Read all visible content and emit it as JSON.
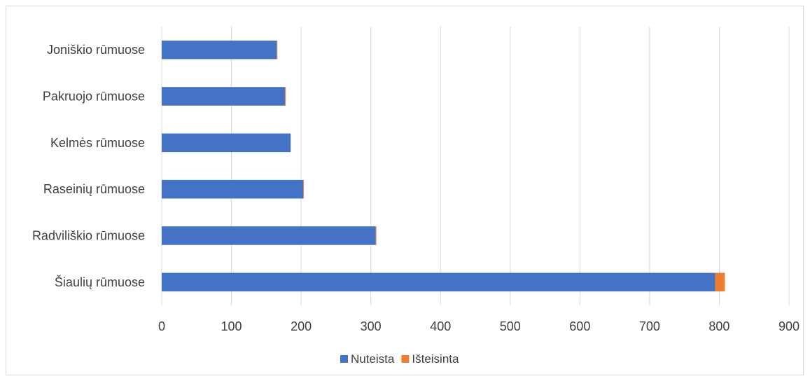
{
  "chart_data": {
    "type": "bar",
    "orientation": "horizontal",
    "stacked": true,
    "categories": [
      "Joniškio rūmuose",
      "Pakruojo rūmuose",
      "Kelmės rūmuose",
      "Raseinių rūmuose",
      "Radviliškio rūmuose",
      "Šiaulių rūmuose"
    ],
    "series": [
      {
        "name": "Nuteista",
        "color": "#4472C4",
        "values": [
          165,
          177,
          185,
          203,
          307,
          794
        ]
      },
      {
        "name": "Išteisinta",
        "color": "#ED7D31",
        "values": [
          1,
          1,
          0,
          1,
          1,
          14
        ]
      }
    ],
    "xlim": [
      0,
      900
    ],
    "xticks": [
      "0",
      "100",
      "200",
      "300",
      "400",
      "500",
      "600",
      "700",
      "800",
      "900"
    ],
    "grid": true,
    "legend_position": "bottom",
    "title": "",
    "xlabel": "",
    "ylabel": ""
  }
}
